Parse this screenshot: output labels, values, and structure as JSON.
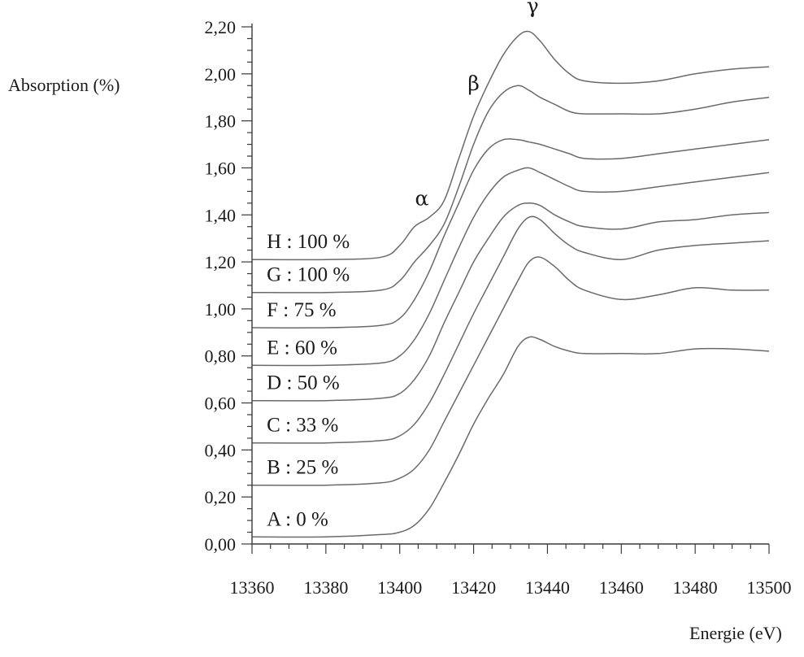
{
  "chart_data": {
    "type": "line",
    "title": "",
    "xlabel": "Energie (eV)",
    "ylabel": "Absorption (%)",
    "xlim": [
      13360,
      13500
    ],
    "ylim": [
      0,
      2.2
    ],
    "x_ticks": [
      "13360",
      "13380",
      "13400",
      "13420",
      "13440",
      "13460",
      "13480",
      "13500"
    ],
    "x_tick_values": [
      13360,
      13380,
      13400,
      13420,
      13440,
      13460,
      13480,
      13500
    ],
    "y_ticks": [
      "0,00",
      "0,20",
      "0,40",
      "0,60",
      "0,80",
      "1,00",
      "1,20",
      "1,40",
      "1,60",
      "1,80",
      "2,00",
      "2,20"
    ],
    "y_tick_values": [
      0,
      0.2,
      0.4,
      0.6,
      0.8,
      1.0,
      1.2,
      1.4,
      1.6,
      1.8,
      2.0,
      2.2
    ],
    "grid": false,
    "legend": "inline labels at left",
    "annotations": [
      {
        "text": "α",
        "x": 13406,
        "y": 1.44
      },
      {
        "text": "β",
        "x": 13420,
        "y": 1.93
      },
      {
        "text": "γ",
        "x": 13436,
        "y": 2.26
      }
    ],
    "series": [
      {
        "name": "A : 0 %",
        "x": [
          13360,
          13380,
          13395,
          13400,
          13404,
          13408,
          13412,
          13416,
          13420,
          13424,
          13428,
          13432,
          13435,
          13438,
          13442,
          13446,
          13450,
          13460,
          13470,
          13480,
          13490,
          13500
        ],
        "y": [
          0.03,
          0.03,
          0.04,
          0.05,
          0.08,
          0.15,
          0.26,
          0.38,
          0.51,
          0.62,
          0.72,
          0.84,
          0.88,
          0.87,
          0.84,
          0.82,
          0.81,
          0.81,
          0.81,
          0.83,
          0.83,
          0.82
        ]
      },
      {
        "name": "B : 25 %",
        "x": [
          13360,
          13380,
          13395,
          13400,
          13404,
          13408,
          13412,
          13416,
          13420,
          13424,
          13428,
          13432,
          13435,
          13438,
          13442,
          13446,
          13450,
          13460,
          13470,
          13480,
          13490,
          13500
        ],
        "y": [
          0.25,
          0.25,
          0.26,
          0.28,
          0.32,
          0.4,
          0.52,
          0.64,
          0.76,
          0.88,
          1.0,
          1.12,
          1.2,
          1.22,
          1.18,
          1.12,
          1.08,
          1.04,
          1.06,
          1.09,
          1.08,
          1.08
        ]
      },
      {
        "name": "C : 33 %",
        "x": [
          13360,
          13380,
          13395,
          13400,
          13404,
          13408,
          13412,
          13416,
          13420,
          13424,
          13428,
          13432,
          13435,
          13438,
          13442,
          13446,
          13450,
          13460,
          13470,
          13480,
          13490,
          13500
        ],
        "y": [
          0.43,
          0.43,
          0.44,
          0.46,
          0.51,
          0.6,
          0.72,
          0.85,
          0.98,
          1.1,
          1.22,
          1.34,
          1.39,
          1.38,
          1.32,
          1.27,
          1.24,
          1.21,
          1.25,
          1.27,
          1.28,
          1.29
        ]
      },
      {
        "name": "D : 50 %",
        "x": [
          13360,
          13380,
          13395,
          13400,
          13404,
          13408,
          13412,
          13416,
          13420,
          13424,
          13428,
          13432,
          13435,
          13438,
          13442,
          13446,
          13450,
          13460,
          13470,
          13480,
          13490,
          13500
        ],
        "y": [
          0.61,
          0.61,
          0.62,
          0.64,
          0.7,
          0.8,
          0.94,
          1.07,
          1.2,
          1.3,
          1.39,
          1.44,
          1.45,
          1.44,
          1.4,
          1.37,
          1.35,
          1.34,
          1.37,
          1.38,
          1.4,
          1.41
        ]
      },
      {
        "name": "E : 60 %",
        "x": [
          13360,
          13380,
          13395,
          13400,
          13404,
          13408,
          13412,
          13416,
          13420,
          13424,
          13428,
          13432,
          13435,
          13438,
          13442,
          13446,
          13450,
          13460,
          13470,
          13480,
          13490,
          13500
        ],
        "y": [
          0.76,
          0.76,
          0.77,
          0.8,
          0.87,
          0.98,
          1.12,
          1.26,
          1.39,
          1.49,
          1.56,
          1.59,
          1.6,
          1.58,
          1.55,
          1.52,
          1.5,
          1.5,
          1.52,
          1.54,
          1.56,
          1.58
        ]
      },
      {
        "name": "F : 75 %",
        "x": [
          13360,
          13380,
          13395,
          13400,
          13404,
          13408,
          13412,
          13416,
          13420,
          13424,
          13428,
          13432,
          13435,
          13438,
          13442,
          13446,
          13450,
          13460,
          13470,
          13480,
          13490,
          13500
        ],
        "y": [
          0.92,
          0.92,
          0.93,
          0.96,
          1.04,
          1.16,
          1.31,
          1.45,
          1.59,
          1.68,
          1.72,
          1.72,
          1.71,
          1.7,
          1.68,
          1.66,
          1.64,
          1.64,
          1.66,
          1.68,
          1.7,
          1.72
        ]
      },
      {
        "name": "G : 100 %",
        "x": [
          13360,
          13380,
          13395,
          13400,
          13404,
          13408,
          13412,
          13416,
          13420,
          13424,
          13428,
          13432,
          13435,
          13438,
          13442,
          13446,
          13450,
          13460,
          13470,
          13480,
          13490,
          13500
        ],
        "y": [
          1.07,
          1.07,
          1.08,
          1.12,
          1.2,
          1.27,
          1.36,
          1.52,
          1.7,
          1.84,
          1.92,
          1.95,
          1.93,
          1.9,
          1.87,
          1.84,
          1.83,
          1.83,
          1.83,
          1.85,
          1.88,
          1.9
        ]
      },
      {
        "name": "H : 100 %",
        "x": [
          13360,
          13380,
          13395,
          13400,
          13404,
          13408,
          13412,
          13416,
          13420,
          13424,
          13428,
          13432,
          13435,
          13438,
          13442,
          13446,
          13450,
          13460,
          13470,
          13480,
          13490,
          13500
        ],
        "y": [
          1.21,
          1.21,
          1.22,
          1.27,
          1.35,
          1.39,
          1.46,
          1.64,
          1.82,
          1.96,
          2.08,
          2.16,
          2.18,
          2.14,
          2.06,
          2.0,
          1.97,
          1.96,
          1.97,
          2.0,
          2.02,
          2.03
        ]
      }
    ]
  }
}
